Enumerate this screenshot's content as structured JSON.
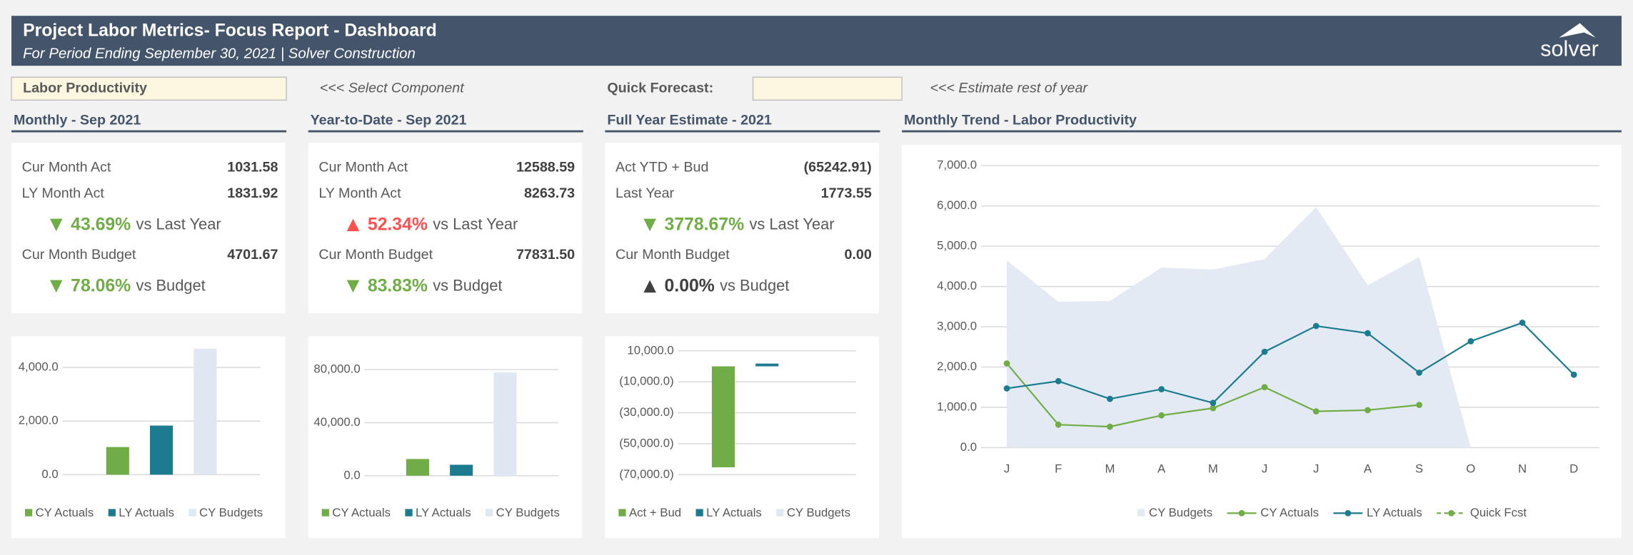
{
  "header": {
    "title": "Project Labor Metrics- Focus Report - Dashboard",
    "subtitle": "For Period Ending September 30, 2021 | Solver Construction",
    "logo": "solver"
  },
  "controls": {
    "component": "Labor Productivity",
    "component_hint": "<<< Select Component",
    "forecast_label": "Quick Forecast:",
    "forecast_hint": "<<< Estimate rest of year"
  },
  "panels": [
    {
      "title": "Monthly - Sep 2021",
      "rows": [
        {
          "label": "Cur Month Act",
          "value": "1031.58"
        },
        {
          "label": "LY Month Act",
          "value": "1831.92"
        }
      ],
      "vs_ly": {
        "pct": "43.69%",
        "text": "vs Last Year",
        "trend": "down",
        "color": "#70ad47"
      },
      "budget": {
        "label": "Cur Month Budget",
        "value": "4701.67"
      },
      "vs_budget": {
        "pct": "78.06%",
        "text": "vs Budget",
        "trend": "down",
        "color": "#70ad47"
      }
    },
    {
      "title": "Year-to-Date - Sep 2021",
      "rows": [
        {
          "label": "Cur Month Act",
          "value": "12588.59"
        },
        {
          "label": "LY Month Act",
          "value": "8263.73"
        }
      ],
      "vs_ly": {
        "pct": "52.34%",
        "text": "vs Last Year",
        "trend": "up",
        "color": "#ff5050"
      },
      "budget": {
        "label": "Cur Month Budget",
        "value": "77831.50"
      },
      "vs_budget": {
        "pct": "83.83%",
        "text": "vs Budget",
        "trend": "down",
        "color": "#70ad47"
      }
    },
    {
      "title": "Full Year Estimate - 2021",
      "rows": [
        {
          "label": "Act YTD + Bud",
          "value": "(65242.91)"
        },
        {
          "label": "Last Year",
          "value": "1773.55"
        }
      ],
      "vs_ly": {
        "pct": "3778.67%",
        "text": "vs Last Year",
        "trend": "down",
        "color": "#70ad47"
      },
      "budget": {
        "label": "Cur Month Budget",
        "value": "0.00"
      },
      "vs_budget": {
        "pct": "0.00%",
        "text": "vs Budget",
        "trend": "up",
        "color": "#404040"
      }
    }
  ],
  "chart_data": [
    {
      "type": "bar",
      "series": [
        {
          "name": "CY Actuals",
          "color": "#70ad47",
          "values": [
            1031.58
          ]
        },
        {
          "name": "LY Actuals",
          "color": "#1b7b8f",
          "values": [
            1831.92
          ]
        },
        {
          "name": "CY Budgets",
          "color": "#dfe7f2",
          "values": [
            4701.67
          ]
        }
      ],
      "ylim": [
        0,
        4800
      ],
      "yticks": [
        {
          "value": 0,
          "label": "0.0"
        },
        {
          "value": 2000,
          "label": "2,000.0"
        },
        {
          "value": 4000,
          "label": "4,000.0"
        }
      ],
      "grid": true
    },
    {
      "type": "bar",
      "series": [
        {
          "name": "CY Actuals",
          "color": "#70ad47",
          "values": [
            12588.59
          ]
        },
        {
          "name": "LY Actuals",
          "color": "#1b7b8f",
          "values": [
            8263.73
          ]
        },
        {
          "name": "CY Budgets",
          "color": "#dfe7f2",
          "values": [
            77831.5
          ]
        }
      ],
      "ylim": [
        0,
        90000
      ],
      "yticks": [
        {
          "value": 0,
          "label": "0.0"
        },
        {
          "value": 40000,
          "label": "40,000.0"
        },
        {
          "value": 80000,
          "label": "80,000.0"
        }
      ],
      "grid": true
    },
    {
      "type": "bar",
      "series": [
        {
          "name": "Act + Bud",
          "color": "#70ad47",
          "values": [
            -65242.91
          ]
        },
        {
          "name": "LY Actuals",
          "color": "#1b7b8f",
          "values": [
            1773.55
          ]
        },
        {
          "name": "CY Budgets",
          "color": "#dfe7f2",
          "values": [
            0
          ]
        }
      ],
      "ylim": [
        -70000,
        10000
      ],
      "yticks": [
        {
          "value": 10000,
          "label": "10,000.0"
        },
        {
          "value": -10000,
          "label": "(10,000.0)"
        },
        {
          "value": -30000,
          "label": "(30,000.0)"
        },
        {
          "value": -50000,
          "label": "(50,000.0)"
        },
        {
          "value": -70000,
          "label": "(70,000.0)"
        }
      ],
      "grid": true
    },
    {
      "type": "line",
      "title": "Monthly Trend - Labor Productivity",
      "categories": [
        "J",
        "F",
        "M",
        "A",
        "M",
        "J",
        "J",
        "A",
        "S",
        "O",
        "N",
        "D"
      ],
      "series": [
        {
          "name": "CY Budgets",
          "color": "#e3eaf4",
          "style": "area",
          "values": [
            4650,
            3620,
            3640,
            4470,
            4420,
            4680,
            5970,
            4030,
            4730,
            0,
            null,
            null
          ]
        },
        {
          "name": "CY Actuals",
          "color": "#70ad47",
          "style": "line",
          "values": [
            2090,
            570,
            520,
            800,
            980,
            1500,
            900,
            930,
            1060,
            null,
            null,
            null
          ]
        },
        {
          "name": "LY Actuals",
          "color": "#1b7b8f",
          "style": "line",
          "values": [
            1470,
            1650,
            1210,
            1450,
            1110,
            2380,
            3020,
            2840,
            1860,
            2640,
            3100,
            1810
          ]
        },
        {
          "name": "Quick Fcst",
          "color": "#70ad47",
          "style": "dashed",
          "values": [
            null,
            null,
            null,
            null,
            null,
            null,
            null,
            null,
            null,
            null,
            null,
            null
          ]
        }
      ],
      "ylim": [
        0,
        7000
      ],
      "yticks": [
        {
          "value": 0,
          "label": "0.0"
        },
        {
          "value": 1000,
          "label": "1,000.0"
        },
        {
          "value": 2000,
          "label": "2,000.0"
        },
        {
          "value": 3000,
          "label": "3,000.0"
        },
        {
          "value": 4000,
          "label": "4,000.0"
        },
        {
          "value": 5000,
          "label": "5,000.0"
        },
        {
          "value": 6000,
          "label": "6,000.0"
        },
        {
          "value": 7000,
          "label": "7,000.0"
        }
      ],
      "grid": true
    }
  ]
}
